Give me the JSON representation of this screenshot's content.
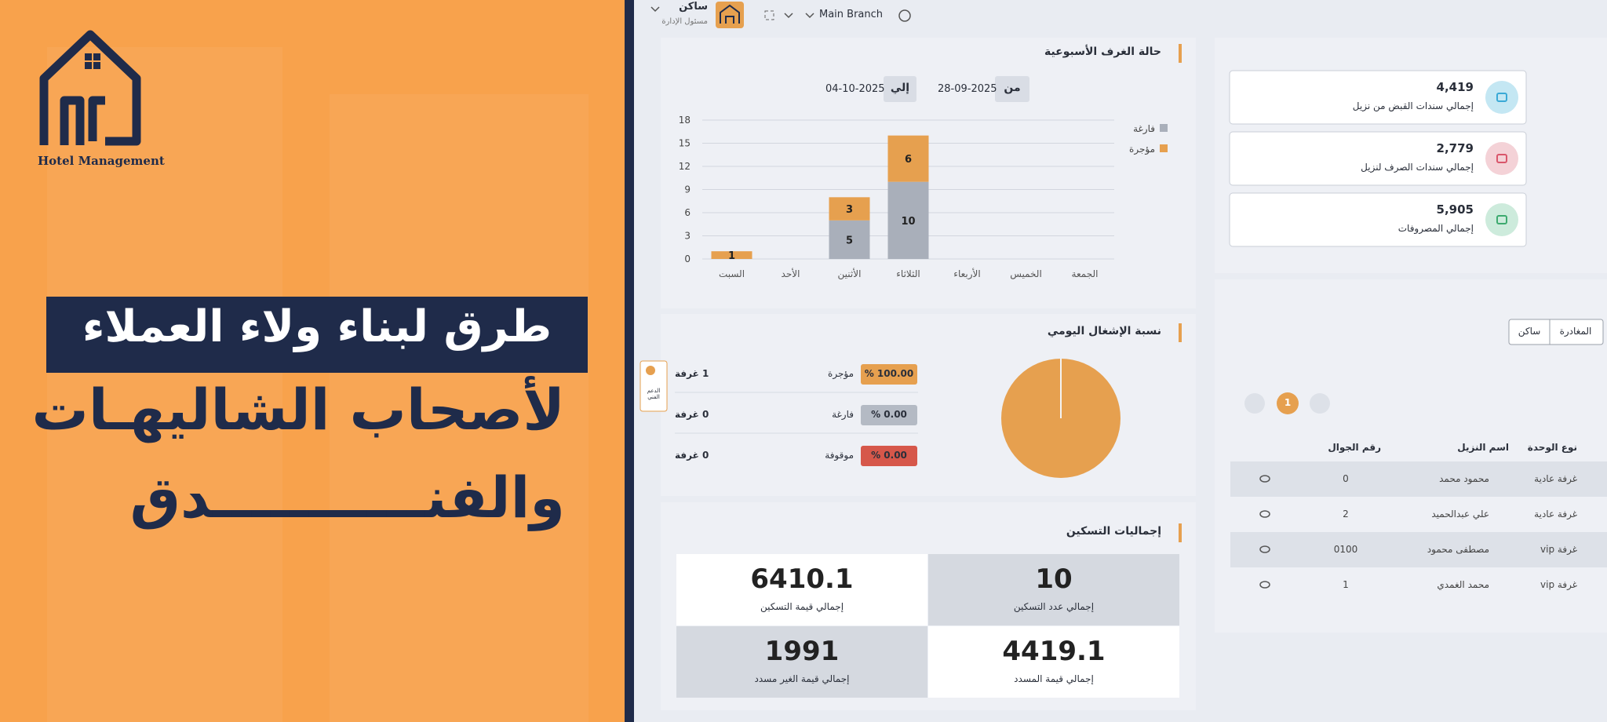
{
  "banner": {
    "logo_text": "Hotel Management",
    "headline": "طرق لبناء ولاء العملاء",
    "subline_1": "لأصحاب الشاليهـات",
    "subline_2": "والفنـــــــــــدق"
  },
  "topbar": {
    "user_name": "ساكن",
    "user_role": "مسئول الإدارة",
    "branch": "Main Branch"
  },
  "weekly_status": {
    "title": "حالة الغرف الأسبوعية",
    "from_label": "من",
    "from_date": "28-09-2025",
    "to_label": "إلي",
    "to_date": "04-10-2025",
    "chart": {
      "type": "bar",
      "categories": [
        "السبت",
        "الأحد",
        "الأثنين",
        "الثلاثاء",
        "الأربعاء",
        "الخميس",
        "الجمعة"
      ],
      "series": [
        {
          "name": "فارغة",
          "color": "#a9afba",
          "values": [
            0,
            0,
            5,
            10,
            0,
            0,
            0
          ]
        },
        {
          "name": "مؤجرة",
          "color": "#e6a04f",
          "values": [
            1,
            0,
            3,
            6,
            0,
            0,
            0
          ]
        }
      ],
      "ylim": [
        0,
        18
      ],
      "yticks": [
        0,
        3,
        6,
        9,
        12,
        15,
        18
      ],
      "grid": true
    }
  },
  "daily_occupancy": {
    "title": "نسبة الإشغال اليومي",
    "rows": [
      {
        "label": "مؤجرة",
        "percent": 100,
        "percent_label": "% 100.00",
        "count": "1 غرفة",
        "color": "#e6a04f"
      },
      {
        "label": "فارغة",
        "percent": 0,
        "percent_label": "% 0.00",
        "count": "0 غرفة",
        "color": "#b4bac4"
      },
      {
        "label": "موقوفة",
        "percent": 0,
        "percent_label": "% 0.00",
        "count": "0 غرفة",
        "color": "#d6574a"
      }
    ],
    "support_label": "الدعم الفني"
  },
  "totals": {
    "title": "إجماليات التسكين",
    "cells": [
      {
        "value": 10,
        "label": "إجمالي عدد التسكين"
      },
      {
        "value": 6410.1,
        "label": "إجمالي قيمة التسكين"
      },
      {
        "value": 4419.1,
        "label": "إجمالي قيمة المسدد"
      },
      {
        "value": 1991,
        "label": "إجمالي قيمة الغير مسدد"
      }
    ]
  },
  "cards": [
    {
      "value": "4,419",
      "label": "إجمالي سندات القبض من نزيل"
    },
    {
      "value": "2,779",
      "label": "إجمالي سندات الصرف لنزيل"
    },
    {
      "value": "5,905",
      "label": "إجمالي المصروفات"
    }
  ],
  "tabs": [
    "ساكن",
    "المغادرة"
  ],
  "pagination": {
    "current": 1
  },
  "table": {
    "headers": [
      "نوع الوحدة",
      "اسم النزيل",
      "رقم الجوال"
    ],
    "rows": [
      [
        "غرفة عادية",
        "محمود محمد",
        "0"
      ],
      [
        "غرفة عادية",
        "علي عبدالحميد",
        "2"
      ],
      [
        "غرفة vip",
        "مصطفى محمود",
        "0100"
      ],
      [
        "غرفة vip",
        "محمد الغمدي",
        "1"
      ]
    ]
  }
}
